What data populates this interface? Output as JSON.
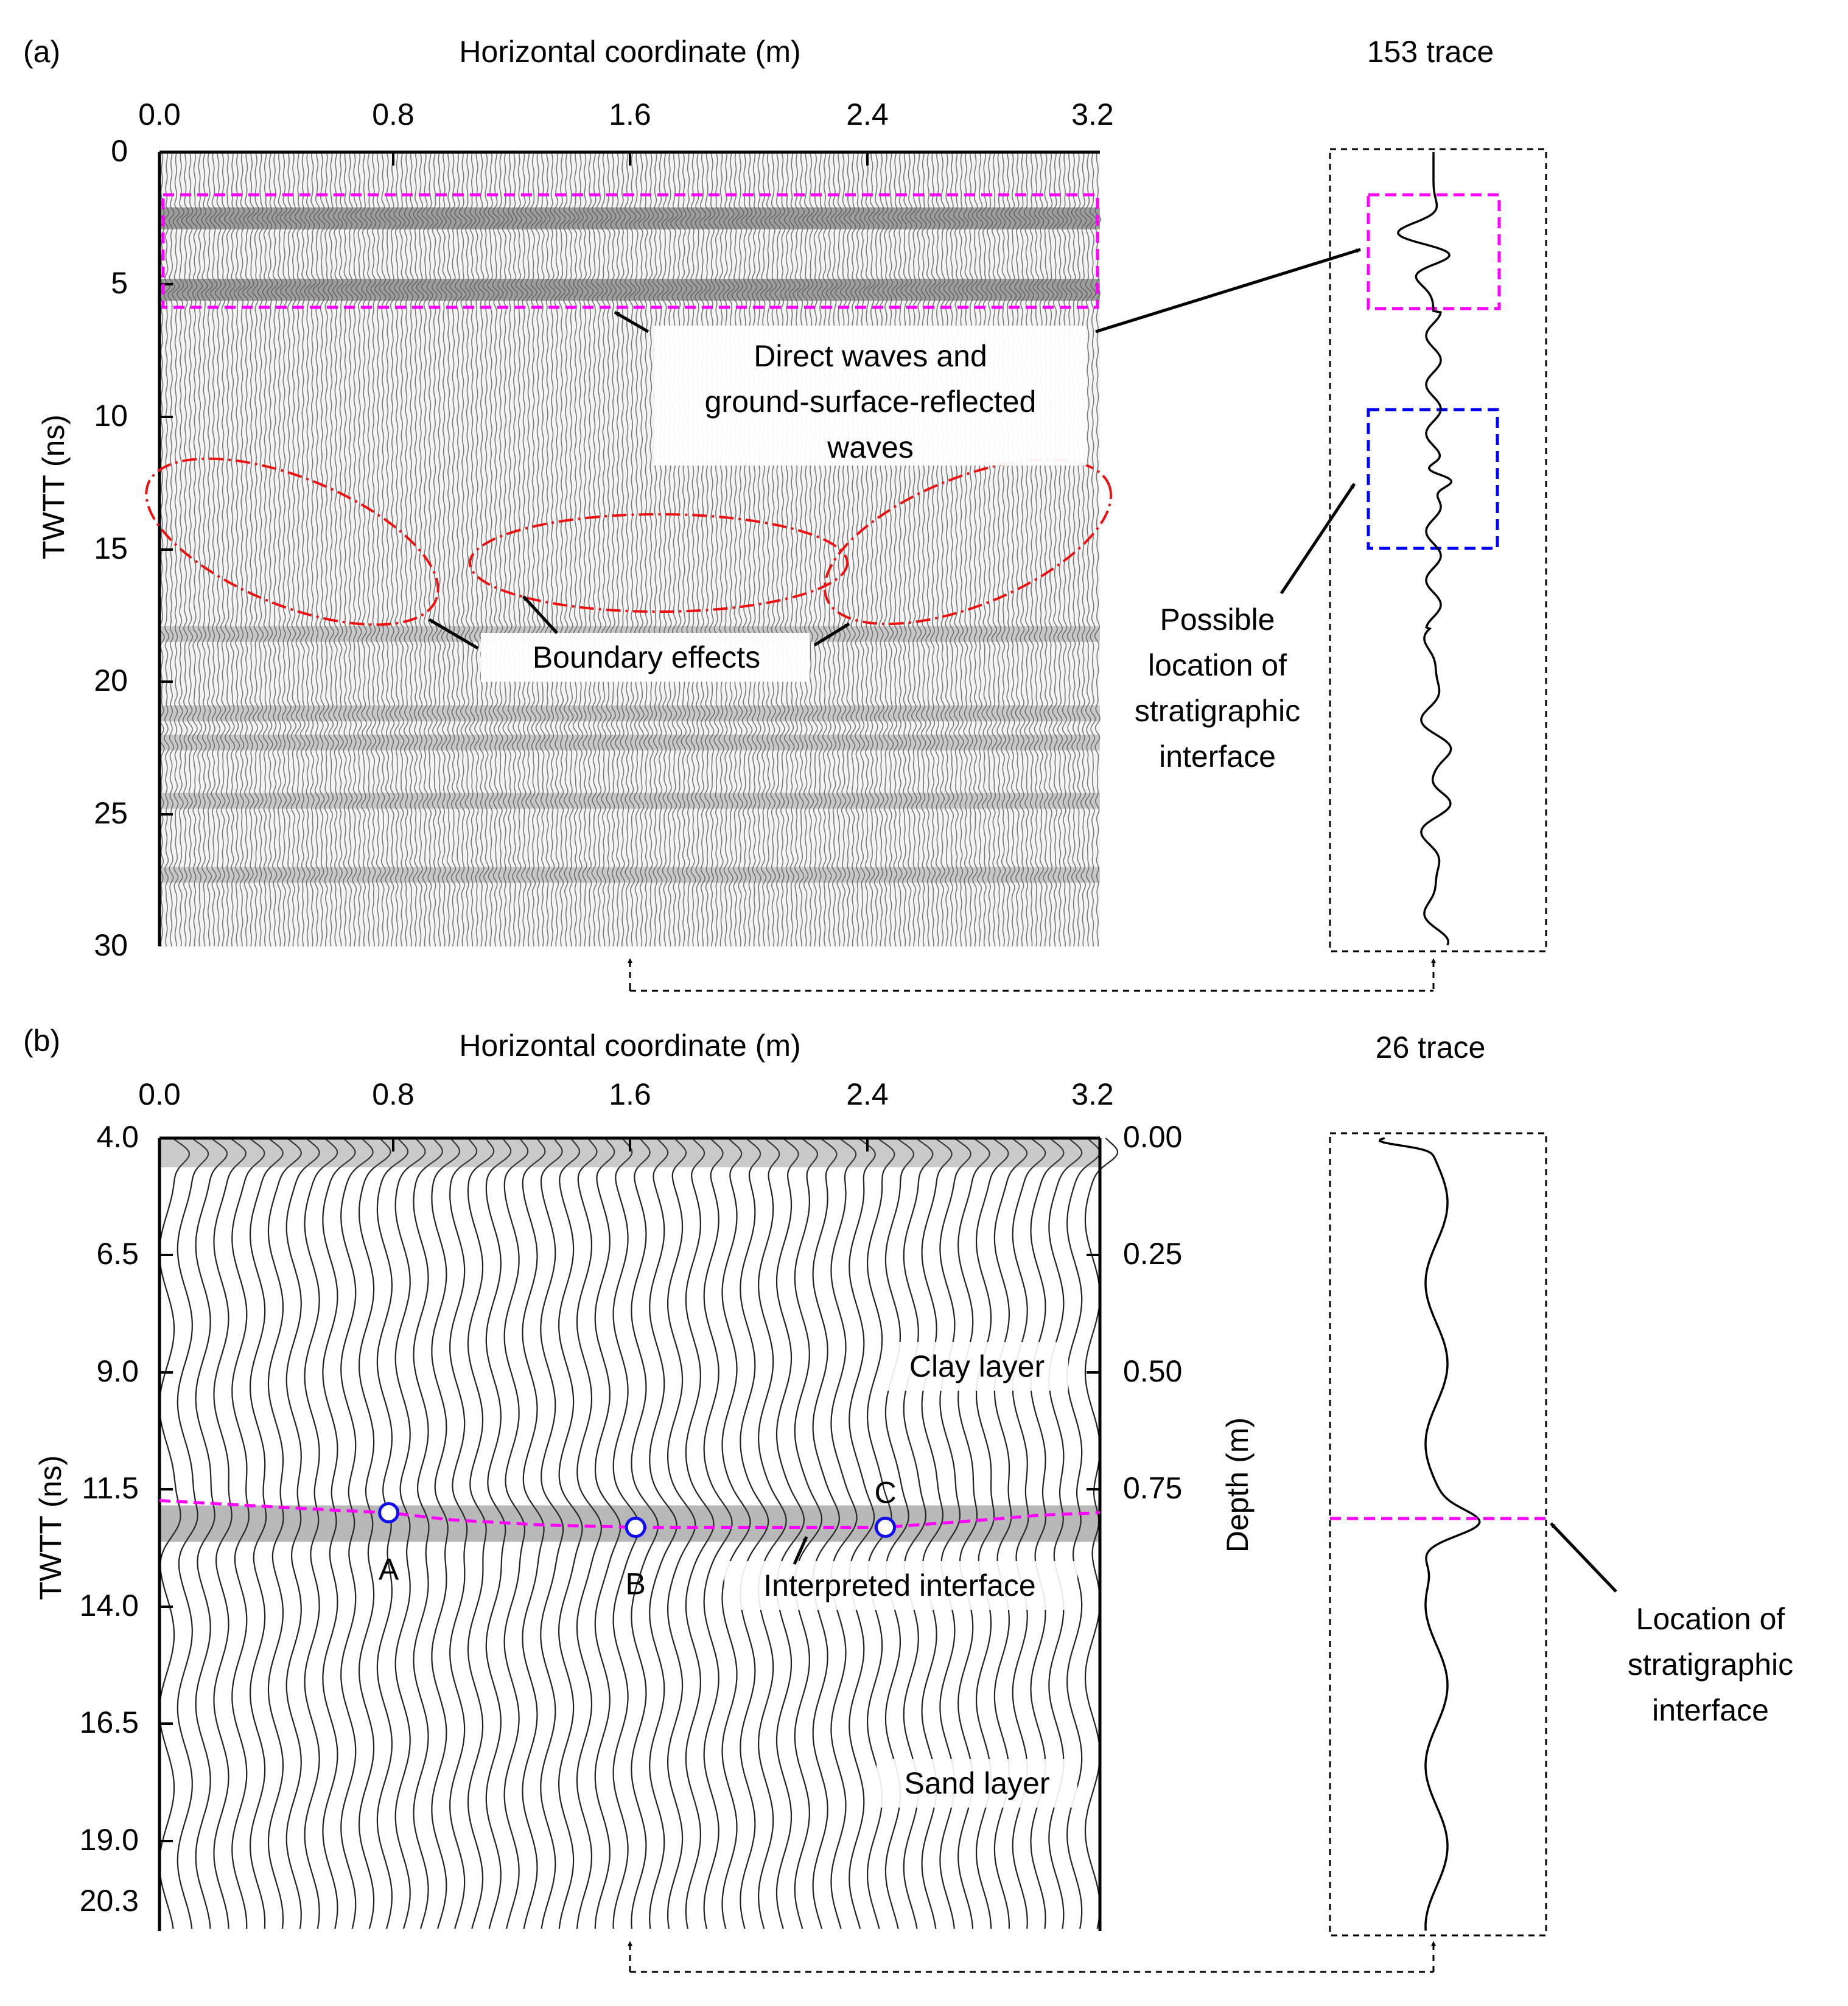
{
  "chart_data": [
    {
      "panel": "(a)",
      "type": "wiggle-radargram",
      "xlabel": "Horizontal coordinate (m)",
      "ylabel": "TWTT (ns)",
      "xlim": [
        0,
        3.2
      ],
      "ylim": [
        0,
        30
      ],
      "x_ticks": [
        "0.0",
        "0.8",
        "1.6",
        "2.4",
        "3.2"
      ],
      "y_ticks": [
        "0",
        "5",
        "10",
        "15",
        "20",
        "25",
        "30"
      ],
      "trace_title": "153 trace",
      "reflector_bands_ns": [
        2.5,
        5.2,
        18.2,
        21.2,
        22.3,
        24.5,
        27.3
      ],
      "annotations": {
        "direct_waves": [
          "Direct waves and",
          "ground-surface-reflected",
          "waves"
        ],
        "boundary": "Boundary effects",
        "possible_interface": [
          "Possible",
          "location of",
          "stratigraphic",
          "interface"
        ]
      },
      "highlight_boxes_ns": [
        {
          "name": "direct-waves",
          "color": "#ff00ff",
          "from": 1.8,
          "to": 6.0
        },
        {
          "name": "possible-interface",
          "color": "#0000ff",
          "from": 9.7,
          "to": 15.0
        }
      ]
    },
    {
      "panel": "(b)",
      "type": "wiggle-radargram",
      "xlabel": "Horizontal coordinate (m)",
      "ylabel": "TWTT (ns)",
      "y2label": "Depth (m)",
      "xlim": [
        0,
        3.2
      ],
      "ylim": [
        4.0,
        20.3
      ],
      "x_ticks": [
        "0.0",
        "0.8",
        "1.6",
        "2.4",
        "3.2"
      ],
      "y_ticks": [
        "4.0",
        "6.5",
        "9.0",
        "11.5",
        "14.0",
        "16.5",
        "19.0",
        "20.3"
      ],
      "y2_ticks": [
        "0.00",
        "0.25",
        "0.50",
        "0.75"
      ],
      "trace_title": "26 trace",
      "layers": {
        "upper": "Clay layer",
        "lower": "Sand layer"
      },
      "interface_label": "Interpreted interface",
      "interface_points": [
        {
          "label": "A",
          "x": 0.78,
          "twtt": 11.7
        },
        {
          "label": "B",
          "x": 1.62,
          "twtt": 12.0
        },
        {
          "label": "C",
          "x": 2.47,
          "twtt": 12.0
        }
      ],
      "interface_line": {
        "x": [
          0,
          0.3,
          0.6,
          0.78,
          1.0,
          1.3,
          1.62,
          2.0,
          2.47,
          2.8,
          3.0,
          3.2
        ],
        "twtt": [
          11.45,
          11.55,
          11.65,
          11.7,
          11.85,
          11.95,
          12.0,
          12.0,
          12.0,
          11.85,
          11.75,
          11.7
        ]
      },
      "location_label": [
        "Location of",
        "stratigraphic",
        "interface"
      ]
    }
  ]
}
